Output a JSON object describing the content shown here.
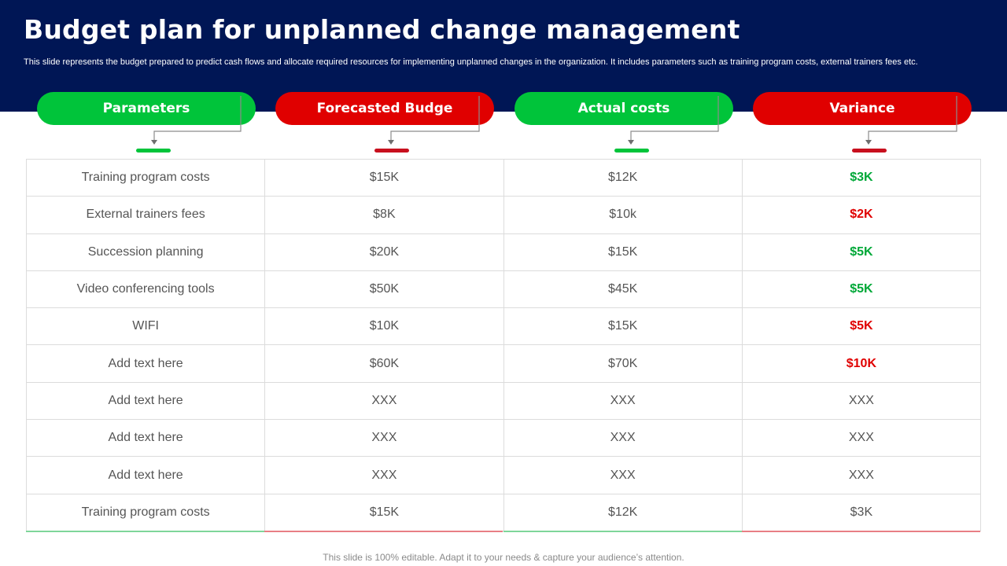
{
  "header": {
    "title": "Budget plan for unplanned change management",
    "description": "This slide represents the budget prepared to predict cash flows and allocate required resources for implementing unplanned changes in the organization. It includes parameters such as training program costs, external trainers fees etc."
  },
  "columns": [
    {
      "label": "Parameters",
      "color": "green"
    },
    {
      "label": "Forecasted Budge",
      "color": "red"
    },
    {
      "label": "Actual costs",
      "color": "green"
    },
    {
      "label": "Variance",
      "color": "red"
    }
  ],
  "colors": {
    "green": "#00c43a",
    "red": "#e00000",
    "navy": "#001655"
  },
  "rows": [
    {
      "parameter": "Training program costs",
      "forecast": "$15K",
      "actual": "$12K",
      "variance": "$3K",
      "variance_status": "positive"
    },
    {
      "parameter": "External trainers fees",
      "forecast": "$8K",
      "actual": "$10k",
      "variance": "$2K",
      "variance_status": "negative"
    },
    {
      "parameter": "Succession planning",
      "forecast": "$20K",
      "actual": "$15K",
      "variance": "$5K",
      "variance_status": "positive"
    },
    {
      "parameter": "Video conferencing tools",
      "forecast": "$50K",
      "actual": "$45K",
      "variance": "$5K",
      "variance_status": "positive"
    },
    {
      "parameter": "WIFI",
      "forecast": "$10K",
      "actual": "$15K",
      "variance": "$5K",
      "variance_status": "negative"
    },
    {
      "parameter": "Add text here",
      "forecast": "$60K",
      "actual": "$70K",
      "variance": "$10K",
      "variance_status": "negative"
    },
    {
      "parameter": "Add text here",
      "forecast": "XXX",
      "actual": "XXX",
      "variance": "XXX",
      "variance_status": "neutral"
    },
    {
      "parameter": "Add text here",
      "forecast": "XXX",
      "actual": "XXX",
      "variance": "XXX",
      "variance_status": "neutral"
    },
    {
      "parameter": "Add text here",
      "forecast": "XXX",
      "actual": "XXX",
      "variance": "XXX",
      "variance_status": "neutral"
    },
    {
      "parameter": "Training program costs",
      "forecast": "$15K",
      "actual": "$12K",
      "variance": "$3K",
      "variance_status": "neutral"
    }
  ],
  "footer": "This slide is 100% editable. Adapt it to your needs & capture your audience’s attention."
}
